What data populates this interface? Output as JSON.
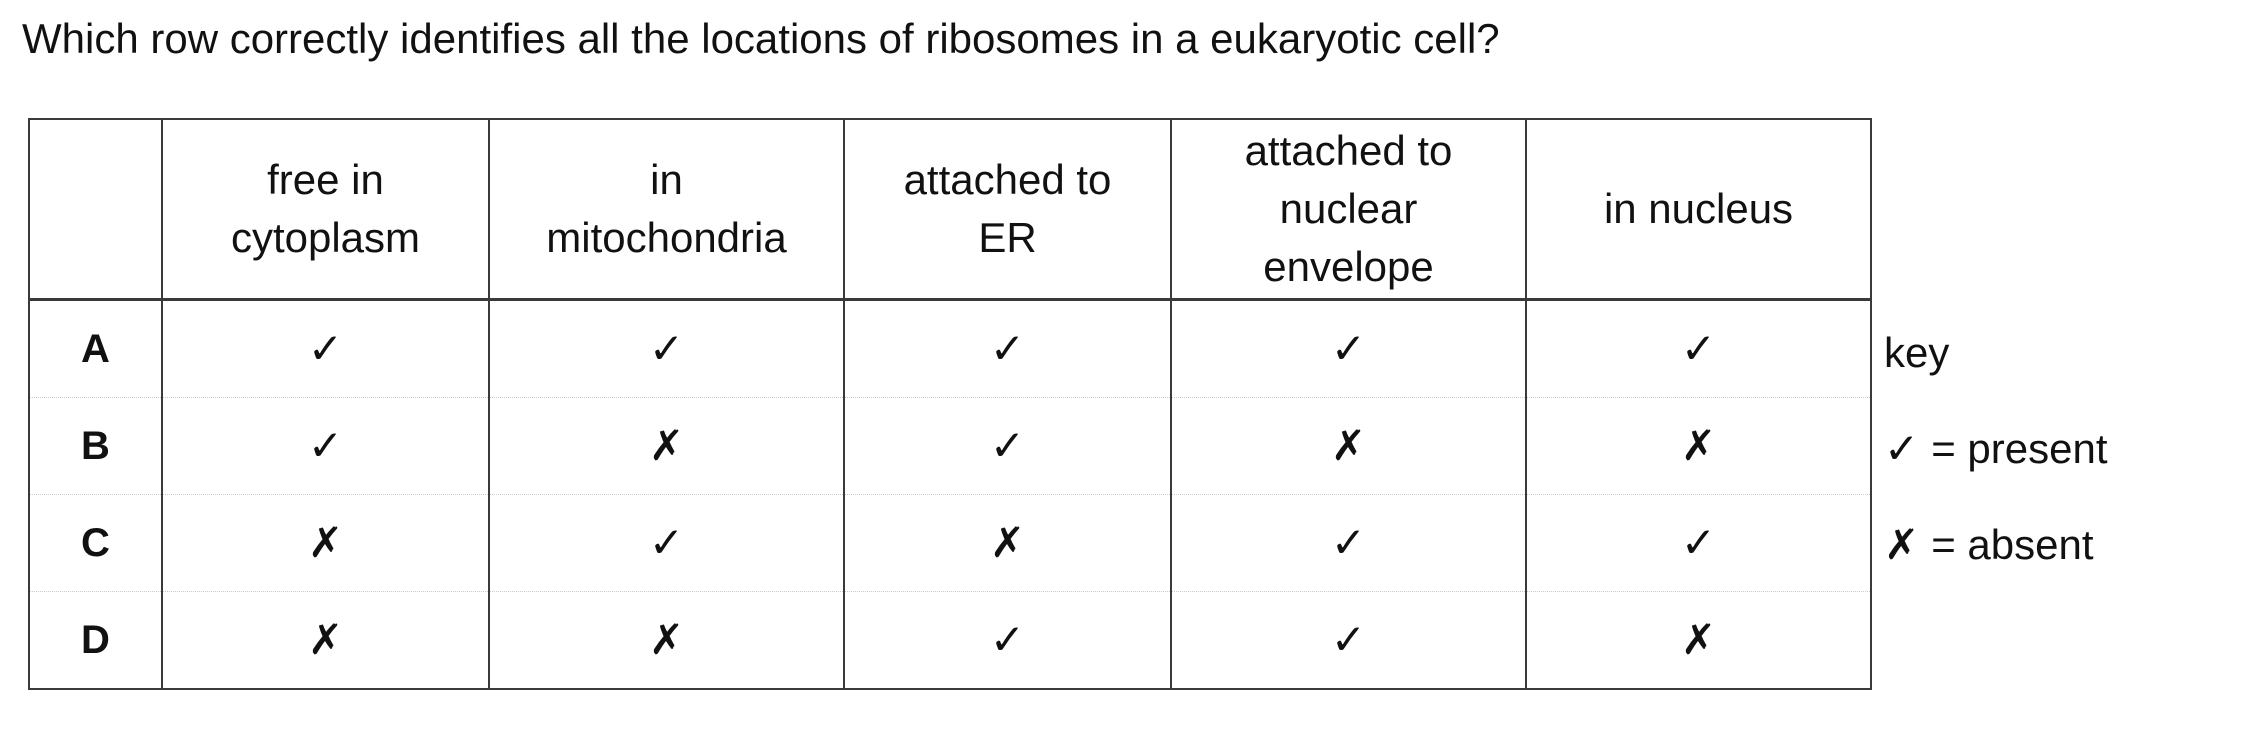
{
  "question": "Which row correctly identifies all the locations of ribosomes in a eukaryotic cell?",
  "table": {
    "headers": [
      "",
      "free in\ncytoplasm",
      "in\nmitochondria",
      "attached to\nER",
      "attached to\nnuclear\nenvelope",
      "in nucleus"
    ],
    "rows": [
      {
        "label": "A",
        "cells": [
          "✓",
          "✓",
          "✓",
          "✓",
          "✓"
        ]
      },
      {
        "label": "B",
        "cells": [
          "✓",
          "✗",
          "✓",
          "✗",
          "✗"
        ]
      },
      {
        "label": "C",
        "cells": [
          "✗",
          "✓",
          "✗",
          "✓",
          "✓"
        ]
      },
      {
        "label": "D",
        "cells": [
          "✗",
          "✗",
          "✓",
          "✓",
          "✗"
        ]
      }
    ]
  },
  "key": {
    "title": "key",
    "present_symbol": "✓",
    "present_text": "= present",
    "absent_symbol": "✗",
    "absent_text": "= absent"
  }
}
